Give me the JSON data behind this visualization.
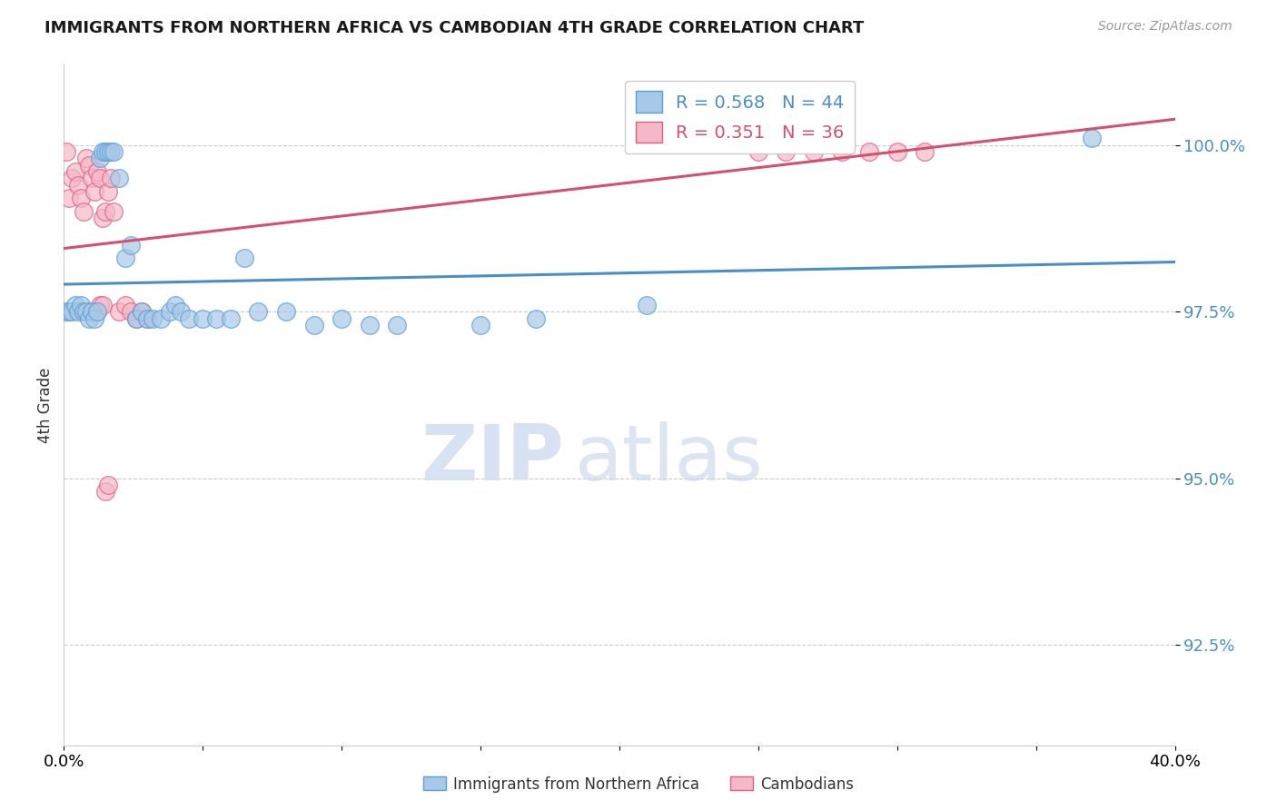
{
  "title": "IMMIGRANTS FROM NORTHERN AFRICA VS CAMBODIAN 4TH GRADE CORRELATION CHART",
  "source": "Source: ZipAtlas.com",
  "ylabel": "4th Grade",
  "y_ticks": [
    92.5,
    95.0,
    97.5,
    100.0
  ],
  "y_tick_labels": [
    "92.5%",
    "95.0%",
    "97.5%",
    "100.0%"
  ],
  "xlim": [
    0.0,
    0.4
  ],
  "ylim": [
    91.0,
    101.2
  ],
  "blue_label": "Immigrants from Northern Africa",
  "pink_label": "Cambodians",
  "blue_R": "R = 0.568",
  "blue_N": "N = 44",
  "pink_R": "R = 0.351",
  "pink_N": "N = 36",
  "blue_color": "#a8c8e8",
  "pink_color": "#f5b8c8",
  "blue_edge_color": "#5a9fd4",
  "pink_edge_color": "#e06080",
  "blue_line_color": "#4a8fc4",
  "pink_line_color": "#d45070",
  "blue_x": [
    0.001,
    0.002,
    0.003,
    0.004,
    0.005,
    0.006,
    0.007,
    0.008,
    0.009,
    0.01,
    0.011,
    0.012,
    0.013,
    0.014,
    0.015,
    0.016,
    0.017,
    0.018,
    0.02,
    0.022,
    0.024,
    0.026,
    0.028,
    0.03,
    0.032,
    0.035,
    0.038,
    0.04,
    0.042,
    0.045,
    0.05,
    0.055,
    0.06,
    0.065,
    0.07,
    0.08,
    0.09,
    0.1,
    0.11,
    0.12,
    0.15,
    0.17,
    0.21,
    0.37
  ],
  "blue_y": [
    97.5,
    97.5,
    97.5,
    97.6,
    97.5,
    97.6,
    97.5,
    97.5,
    97.4,
    97.5,
    97.4,
    97.5,
    99.8,
    99.9,
    99.9,
    99.9,
    99.9,
    99.9,
    99.5,
    98.3,
    98.5,
    97.4,
    97.5,
    97.4,
    97.4,
    97.4,
    97.5,
    97.6,
    97.5,
    97.4,
    97.4,
    97.4,
    97.4,
    98.3,
    97.5,
    97.5,
    97.3,
    97.4,
    97.3,
    97.3,
    97.3,
    97.4,
    97.6,
    100.1
  ],
  "pink_x": [
    0.001,
    0.002,
    0.003,
    0.004,
    0.005,
    0.006,
    0.007,
    0.008,
    0.009,
    0.01,
    0.011,
    0.012,
    0.013,
    0.014,
    0.015,
    0.016,
    0.017,
    0.018,
    0.02,
    0.022,
    0.024,
    0.026,
    0.028,
    0.03,
    0.012,
    0.013,
    0.014,
    0.25,
    0.26,
    0.27,
    0.28,
    0.29,
    0.3,
    0.31,
    0.015,
    0.016
  ],
  "pink_y": [
    99.9,
    99.2,
    99.5,
    99.6,
    99.4,
    99.2,
    99.0,
    99.8,
    99.7,
    99.5,
    99.3,
    99.6,
    99.5,
    98.9,
    99.0,
    99.3,
    99.5,
    99.0,
    97.5,
    97.6,
    97.5,
    97.4,
    97.5,
    97.4,
    97.5,
    97.6,
    97.6,
    99.9,
    99.9,
    99.9,
    99.9,
    99.9,
    99.9,
    99.9,
    94.8,
    94.9
  ],
  "watermark_zip": "ZIP",
  "watermark_atlas": "atlas",
  "background_color": "#ffffff",
  "grid_color": "#cccccc"
}
